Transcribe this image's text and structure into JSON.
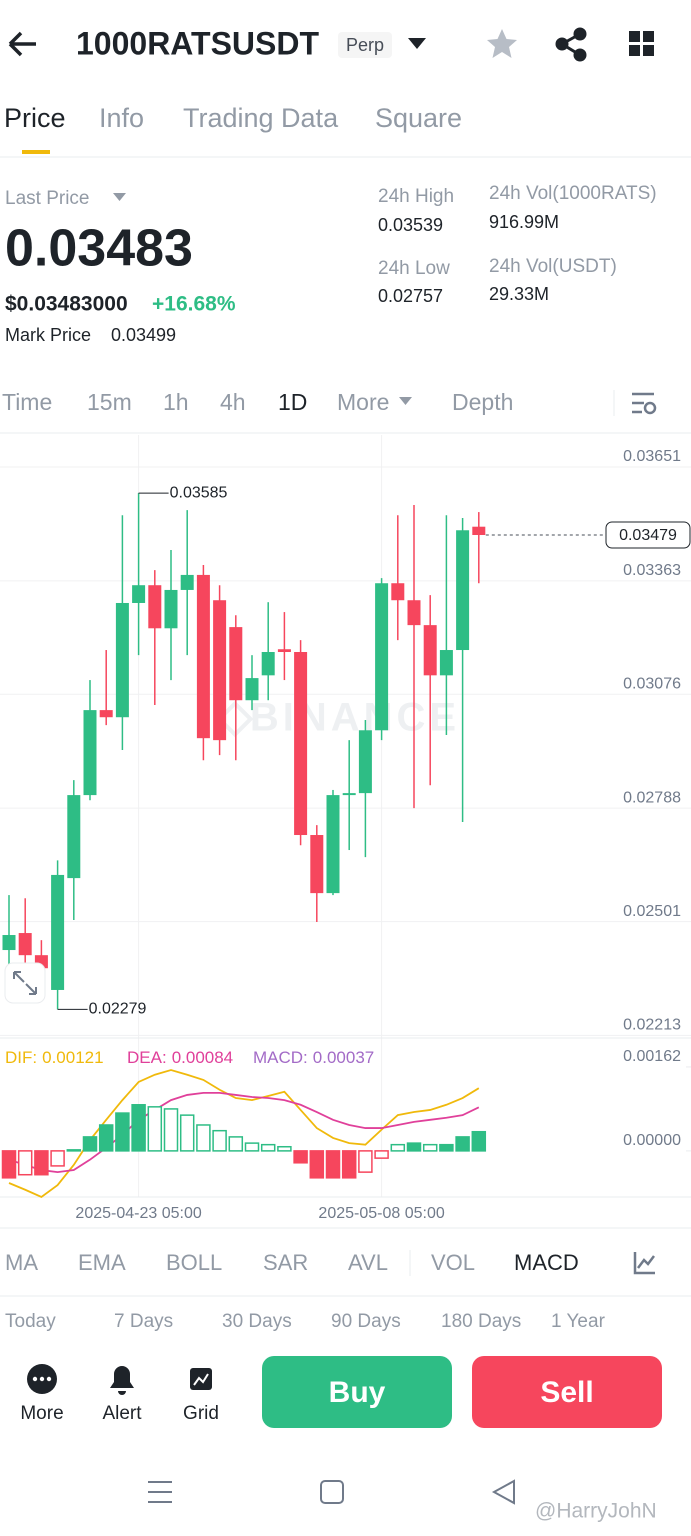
{
  "header": {
    "symbol": "1000RATSUSDT",
    "badge": "Perp"
  },
  "tabs": [
    "Price",
    "Info",
    "Trading Data",
    "Square"
  ],
  "ticker": {
    "last_price_label": "Last Price",
    "last_price": "0.03483",
    "last_price_usd": "$0.03483000",
    "change": "+16.68%",
    "mark_price_label": "Mark Price",
    "mark_price": "0.03499",
    "high_label": "24h High",
    "high": "0.03539",
    "low_label": "24h Low",
    "low": "0.02757",
    "vol_base_label": "24h Vol(1000RATS)",
    "vol_base": "916.99M",
    "vol_quote_label": "24h Vol(USDT)",
    "vol_quote": "29.33M"
  },
  "intervals": [
    "Time",
    "15m",
    "1h",
    "4h",
    "1D",
    "More",
    "Depth"
  ],
  "chart_data": [
    {
      "type": "candlestick",
      "watermark": "BINANCE",
      "categories": [
        null,
        null,
        null,
        null,
        null,
        null,
        null,
        null,
        "2025-04-23 05:00",
        null,
        null,
        null,
        null,
        null,
        null,
        null,
        null,
        null,
        null,
        null,
        null,
        null,
        null,
        "2025-05-08 05:00",
        null,
        null,
        null,
        null,
        null,
        null
      ],
      "open": [
        0.02429,
        0.02472,
        0.02416,
        0.02328,
        0.02611,
        0.02821,
        0.03036,
        0.03018,
        0.03307,
        0.03352,
        0.03243,
        0.0334,
        0.03378,
        0.03314,
        0.03246,
        0.03061,
        0.03124,
        0.0319,
        0.03183,
        0.0272,
        0.02573,
        0.02821,
        0.02826,
        0.02985,
        0.03357,
        0.03314,
        0.03251,
        0.03124,
        0.03188,
        0.035
      ],
      "high": [
        0.02568,
        0.0256,
        0.02454,
        0.02656,
        0.02859,
        0.03112,
        0.03188,
        0.03529,
        0.03585,
        0.0339,
        0.03441,
        0.03542,
        0.03403,
        0.03352,
        0.03276,
        0.03175,
        0.03309,
        0.03284,
        0.03213,
        0.02745,
        0.02834,
        0.0296,
        0.03011,
        0.0337,
        0.03529,
        0.03555,
        0.03327,
        0.03529,
        0.03522,
        0.03537
      ],
      "low": [
        0.02366,
        0.0234,
        0.02335,
        0.02279,
        0.02505,
        0.02808,
        0.02998,
        0.02935,
        0.03175,
        0.03049,
        0.03112,
        0.03175,
        0.02909,
        0.02922,
        0.02909,
        0.03036,
        0.03061,
        0.03112,
        0.02694,
        0.025,
        0.02568,
        0.02682,
        0.02664,
        0.0296,
        0.03213,
        0.02788,
        0.02846,
        0.02973,
        0.02753,
        0.03357
      ],
      "close": [
        0.02467,
        0.02416,
        0.02383,
        0.02619,
        0.02821,
        0.03036,
        0.03018,
        0.03307,
        0.03352,
        0.03243,
        0.0334,
        0.03378,
        0.02965,
        0.0296,
        0.03061,
        0.03117,
        0.03183,
        0.03183,
        0.0272,
        0.02573,
        0.02821,
        0.02826,
        0.02985,
        0.03357,
        0.03314,
        0.03251,
        0.03124,
        0.03188,
        0.03491,
        0.03479
      ],
      "up_color": "#2ebd85",
      "down_color": "#f6465d",
      "ylim": [
        0.02209,
        0.03732
      ],
      "yticks": [
        0.03651,
        0.03363,
        0.03076,
        0.02788,
        0.02501,
        0.02213
      ],
      "grid": true
    },
    {
      "type": "macd",
      "ylim": [
        -0.00089,
        0.00214
      ],
      "yticks": [
        0.00162,
        {
          "value": 0,
          "label": "0.00000"
        }
      ],
      "series": [
        {
          "name": "DIF:",
          "color": "#f0b90b",
          "style": "line",
          "values": [
            -0.00062,
            -0.00075,
            -0.00089,
            -0.00066,
            -0.00027,
            0.00021,
            0.0006,
            0.00098,
            0.00133,
            0.00147,
            0.00156,
            0.00147,
            0.00137,
            0.00118,
            0.00102,
            0.00098,
            0.00106,
            0.00114,
            0.00079,
            0.00044,
            0.00025,
            0.00015,
            0.00012,
            0.00041,
            0.00069,
            0.00075,
            0.00079,
            0.00089,
            0.00102,
            0.00121
          ]
        },
        {
          "name": "DEA:",
          "color": "#e0409a",
          "style": "line",
          "values": [
            -0.00017,
            -0.00027,
            -0.00037,
            -0.00041,
            -0.00037,
            -0.00017,
            6e-05,
            0.00031,
            0.0006,
            0.00079,
            0.00098,
            0.00108,
            0.00112,
            0.00112,
            0.00108,
            0.00104,
            0.00102,
            0.00098,
            0.00089,
            0.00075,
            0.0006,
            0.0005,
            0.00044,
            0.00044,
            0.0005,
            0.00056,
            0.0006,
            0.00064,
            0.00069,
            0.00084
          ]
        },
        {
          "name": "MACD:",
          "color": "#a36bc7",
          "style": "bar",
          "values": [
            -0.00052,
            -0.00046,
            -0.00046,
            -0.00029,
            2e-05,
            0.00027,
            0.0005,
            0.00073,
            0.00089,
            0.00085,
            0.00081,
            0.00069,
            0.0005,
            0.00039,
            0.00027,
            0.00015,
            0.00012,
            8e-05,
            -0.00023,
            -0.00052,
            -0.00052,
            -0.00052,
            -0.00041,
            -0.00014,
            0.00012,
            0.00015,
            0.00012,
            0.00012,
            0.00027,
            0.00037
          ]
        }
      ]
    }
  ],
  "indicators": [
    "MA",
    "EMA",
    "BOLL",
    "SAR",
    "AVL",
    "VOL",
    "MACD"
  ],
  "periods": [
    "Today",
    "7 Days",
    "30 Days",
    "90 Days",
    "180 Days",
    "1 Year"
  ],
  "toolbar": [
    "More",
    "Alert",
    "Grid"
  ],
  "actions": {
    "buy": "Buy",
    "sell": "Sell"
  },
  "watermark": "@HarryJohN"
}
